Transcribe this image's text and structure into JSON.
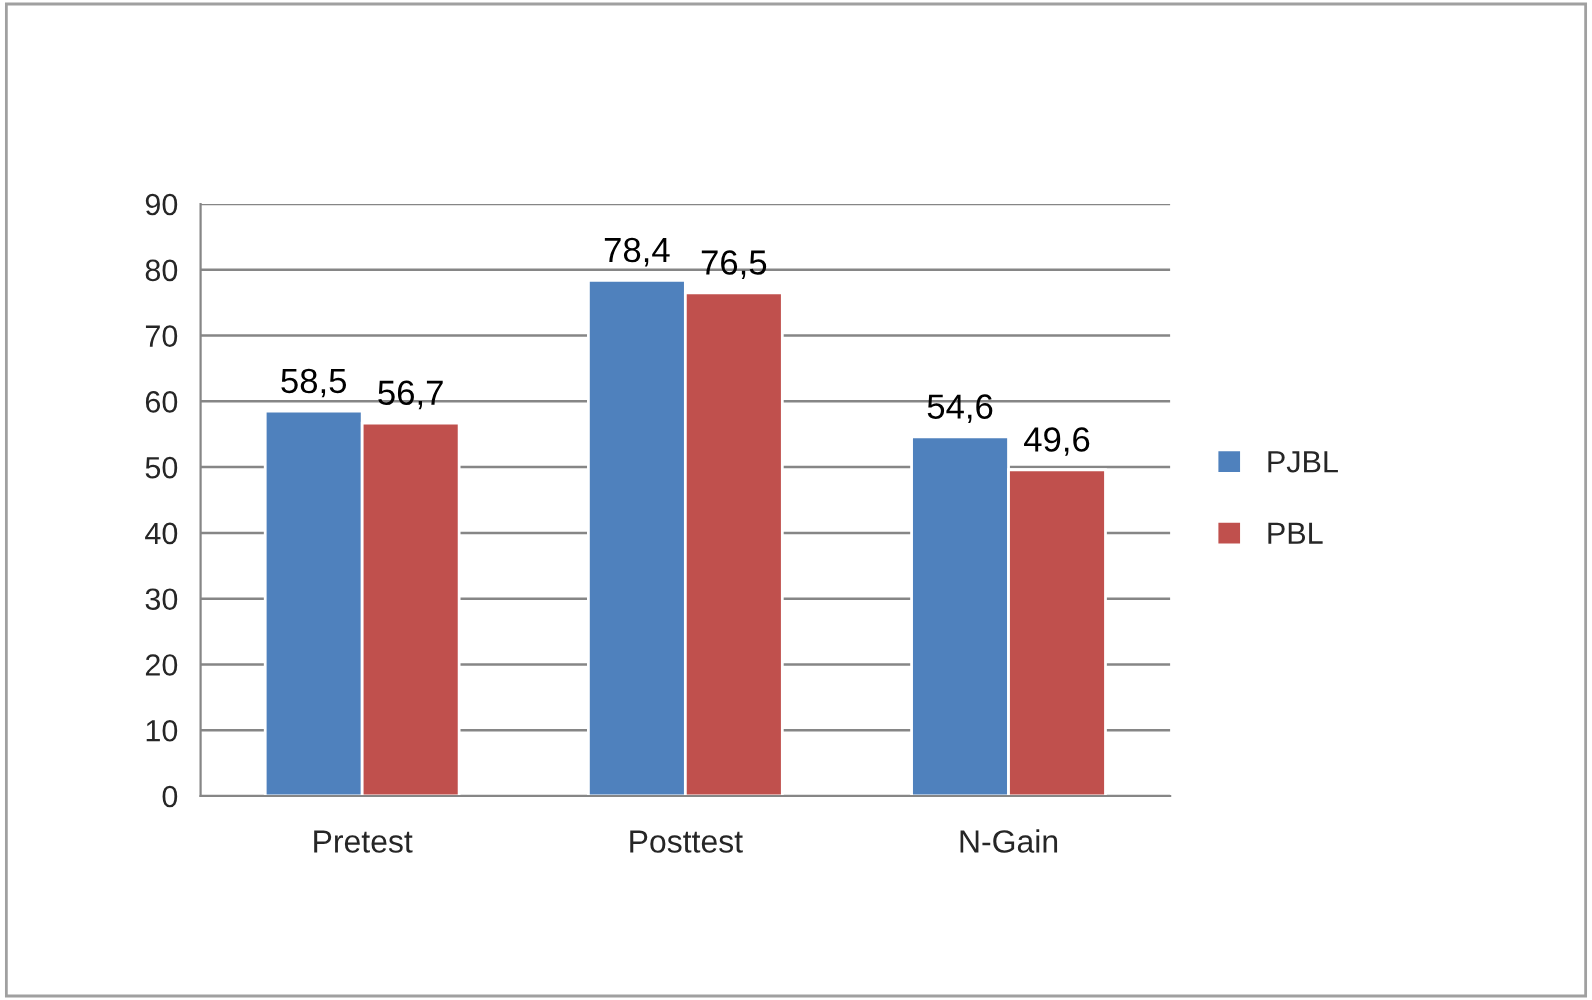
{
  "chart_data": {
    "type": "bar",
    "categories": [
      "Pretest",
      "Posttest",
      "N-Gain"
    ],
    "series": [
      {
        "name": "PJBL",
        "color": "#4f81bd",
        "values": [
          58.5,
          78.4,
          54.6
        ],
        "value_labels": [
          "58,5",
          "78,4",
          "54,6"
        ]
      },
      {
        "name": "PBL",
        "color": "#c0504d",
        "values": [
          56.7,
          76.5,
          49.6
        ],
        "value_labels": [
          "56,7",
          "76,5",
          "49,6"
        ]
      }
    ],
    "ylim": [
      0,
      90
    ],
    "yticks": [
      0,
      10,
      20,
      30,
      40,
      50,
      60,
      70,
      80,
      90
    ],
    "grid": "y",
    "legend": "right"
  }
}
